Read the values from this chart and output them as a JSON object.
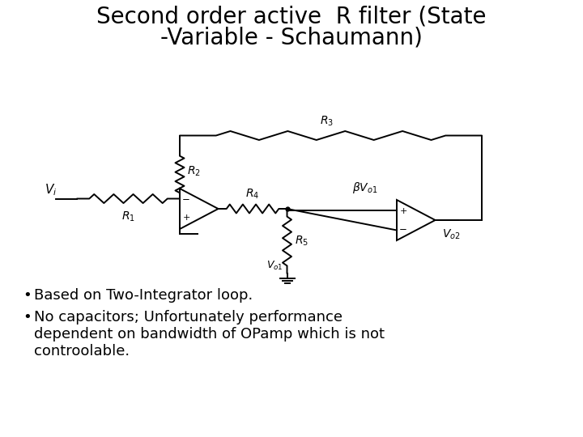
{
  "title_line1": "Second order active  R filter (State",
  "title_line2": "-Variable - Schaumann)",
  "title_fontsize": 20,
  "background_color": "#ffffff",
  "text_color": "#000000",
  "bullet1": "Based on Two-Integrator loop.",
  "bullet2_line1": "No capacitors; Unfortunately performance",
  "bullet2_line2": "dependent on bandwidth of OPamp which is not",
  "bullet2_line3": "controolable.",
  "bullet_fontsize": 13
}
